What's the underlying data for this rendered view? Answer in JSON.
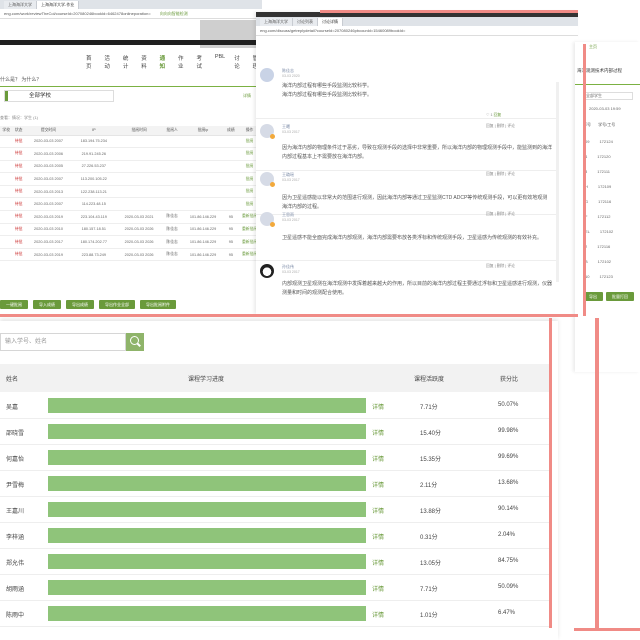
{
  "browser": {
    "left_window": {
      "tabs": [
        "上海海洋大学",
        "上海海洋大学-作业"
      ],
      "url": "eng.com/work/reviewTheCol/courseId=207080246bookId=6462478onlineporation=",
      "extension": "向向向智能检测"
    },
    "right_window": {
      "tabs": [
        "上海海洋大学",
        "讨论列表",
        "讨论详情"
      ],
      "url": "eng.com/discuss/getreplydetail?courseId=207080246pbcounld=15460089bookId="
    }
  },
  "left_page": {
    "menu": [
      "首页",
      "活动",
      "统计",
      "资料",
      "通知",
      "作业",
      "考试",
      "PBL",
      "讨论",
      "管理"
    ],
    "active_menu": "通知",
    "question_title": "什么是？ 为什么？",
    "school_select": "全部学校",
    "view_all": "详情",
    "filter_line": "查看：情况：学生 (1)",
    "headers": [
      "学校",
      "状态",
      "提交时间",
      "IP",
      "批阅时间",
      "批阅人",
      "批阅ip",
      "成绩",
      "操作"
    ],
    "rows": [
      {
        "status": "待批",
        "time": "2020-03-03 2007",
        "ip": "183.194.75.234",
        "op": "批阅"
      },
      {
        "status": "待批",
        "time": "2020-03-03 2006",
        "ip": "219.91.245.26",
        "op": "批阅"
      },
      {
        "status": "待批",
        "time": "2020-03-03 2005",
        "ip": "27.226.53.237",
        "op": "批阅"
      },
      {
        "status": "待批",
        "time": "2020-03-03 2007",
        "ip": "113.200.105.22",
        "op": "批阅"
      },
      {
        "status": "待批",
        "time": "2020-03-03 2013",
        "ip": "122.238.113.21",
        "op": "批阅"
      },
      {
        "status": "待批",
        "time": "2020-03-03 2007",
        "ip": "114.223.48.15",
        "op": "批阅"
      },
      {
        "status": "待批",
        "time": "2020-03-03 2019",
        "ip": "223.104.43.119",
        "review_time": "2020-03-03 2021",
        "reviewer": "陈佳志",
        "review_ip": "101.86.146.229",
        "score": "95",
        "op": "重新批阅"
      },
      {
        "status": "待批",
        "time": "2020-03-03 2010",
        "ip": "180.157.18.51",
        "review_time": "2020-03-03 2026",
        "reviewer": "陈佳志",
        "review_ip": "101.86.146.229",
        "score": "95",
        "op": "重新批阅"
      },
      {
        "status": "待批",
        "time": "2020-03-03 2017",
        "ip": "180.174.202.77",
        "review_time": "2020-03-03 2026",
        "reviewer": "陈佳志",
        "review_ip": "101.86.146.229",
        "score": "95",
        "op": "重新批阅"
      },
      {
        "status": "待批",
        "time": "2020-03-03 2019",
        "ip": "223.88.73.249",
        "review_time": "2020-03-03 2026",
        "reviewer": "陈佳志",
        "review_ip": "101.86.146.229",
        "score": "95",
        "op": "重新批阅"
      }
    ],
    "buttons": [
      "一键批阅",
      "导入成绩",
      "导出成绩",
      "导出作业全部",
      "导出批阅附件"
    ]
  },
  "forum": {
    "posts": [
      {
        "name": "陈佳志",
        "time": "03-03 2020",
        "body": "海洋内部过程有哪些手段监测比较科学。\n海洋内部过程有哪些手段监测比较科学。",
        "actions": "回复"
      },
      {
        "name": "王曦",
        "time": "03-03 2017",
        "body": "因为海洋内部的物理条件过于恶劣，导致在观测手段的选择中非常重要，所以海洋内部的物理观测手段中，能监测到的海洋内部过程基本上不需要放在海洋内部。",
        "actions": "回复 | 删除 | 评论"
      },
      {
        "name": "王璐瑶",
        "time": "03-03 2017",
        "body": "因为卫星遥感能以非常大的范围进行观测，因此海洋内部等通过卫星监测CTD ADCP等传统观测手段，可以更有效地观测海洋内部的过程。",
        "actions": "回复 | 删除 | 评论"
      },
      {
        "name": "王思雨",
        "time": "03-03 2017",
        "body": "卫星遥感不能全面完成海洋内部观测，海洋内部需要布放各类浮标和传统观测手段，卫星遥感为传统观测的有效补充。",
        "actions": "回复 | 删除 | 评论"
      },
      {
        "name": "孙佳伟",
        "time": "03-03 2017",
        "body": "内部观测卫星观测在海洋观测中发挥着越来越大的作用，所以目前的海洋内部过程主要通过浮标和卫星遥感进行观测，仪器测量和时间的观测配合使用。",
        "actions": "回复 | 删除 | 评论"
      }
    ]
  },
  "right_panel": {
    "logo": "主页",
    "title": "海洋观测技术内部过程",
    "select": "全部学生",
    "date": "2020-03-03 19:59",
    "headers": [
      "序号",
      "学号/工号"
    ],
    "rows": [
      [
        "09",
        "172124"
      ],
      [
        "4",
        "172120"
      ],
      [
        "8",
        "172111"
      ],
      [
        "H",
        "172109"
      ],
      [
        "G",
        "172116"
      ],
      [
        "F",
        "172112"
      ],
      [
        "EL",
        "172102"
      ],
      [
        "2",
        "172116"
      ],
      [
        "B",
        "172102"
      ],
      [
        "10",
        "172123"
      ]
    ],
    "buttons": [
      "导出",
      "批量打回"
    ]
  },
  "bottom_table": {
    "search_placeholder": "输入学号、姓名",
    "headers": [
      "姓名",
      "课程学习进度",
      "课程活跃度",
      "获分比"
    ],
    "rows": [
      {
        "name": "吴嘉",
        "detail": "详情",
        "activity": "7.71分",
        "ratio": "50.07%"
      },
      {
        "name": "邵晓雪",
        "detail": "详情",
        "activity": "15.40分",
        "ratio": "99.98%"
      },
      {
        "name": "何嘉怡",
        "detail": "详情",
        "activity": "15.35分",
        "ratio": "99.69%"
      },
      {
        "name": "尹雪梅",
        "detail": "详情",
        "activity": "2.11分",
        "ratio": "13.68%"
      },
      {
        "name": "王嘉川",
        "detail": "详情",
        "activity": "13.88分",
        "ratio": "90.14%"
      },
      {
        "name": "李梓涵",
        "detail": "详情",
        "activity": "0.31分",
        "ratio": "2.04%"
      },
      {
        "name": "郑允伟",
        "detail": "详情",
        "activity": "13.05分",
        "ratio": "84.75%"
      },
      {
        "name": "胡雨涵",
        "detail": "详情",
        "activity": "7.71分",
        "ratio": "50.09%"
      },
      {
        "name": "陈雨中",
        "detail": "详情",
        "activity": "1.01分",
        "ratio": "6.47%"
      }
    ]
  },
  "colors": {
    "accent_green": "#6a9a3b",
    "bar_green": "#8fc47a",
    "pink_highlight": "#f08b86",
    "status_red": "#cc3333"
  }
}
